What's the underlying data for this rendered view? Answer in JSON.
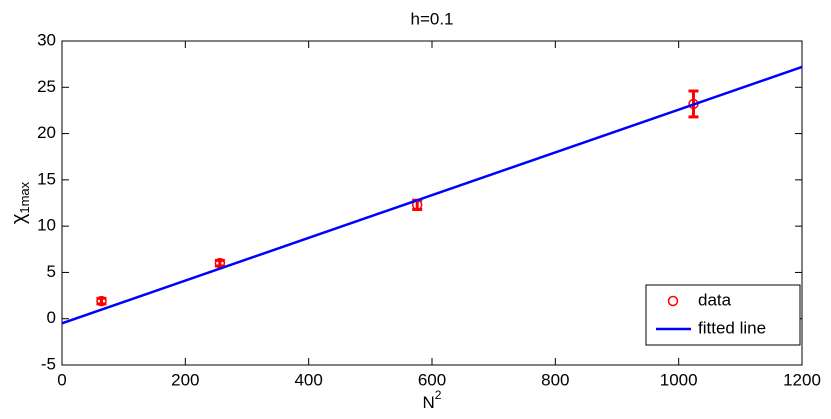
{
  "chart_data": {
    "type": "scatter",
    "title": "h=0.1",
    "x_label": {
      "base": "N",
      "superscript": "2"
    },
    "y_label": {
      "symbol": "χ",
      "subscript": "1max"
    },
    "xlim": [
      0,
      1200
    ],
    "xticks": [
      0,
      200,
      400,
      600,
      800,
      1000,
      1200
    ],
    "ylim": [
      -5,
      30
    ],
    "yticks": [
      -5,
      0,
      5,
      10,
      15,
      20,
      25,
      30
    ],
    "grid": false,
    "legend": "lower right",
    "series": [
      {
        "name": "data",
        "style": "markers",
        "color": "#ff0000",
        "x": [
          64,
          256,
          576,
          1024
        ],
        "values": [
          1.9,
          6.0,
          12.3,
          23.2
        ],
        "errors": [
          0.3,
          0.3,
          0.5,
          1.4
        ]
      },
      {
        "name": "fitted line",
        "style": "line",
        "color": "#0000ff",
        "x": [
          0,
          1200
        ],
        "values": [
          -0.5,
          27.2
        ]
      }
    ]
  }
}
